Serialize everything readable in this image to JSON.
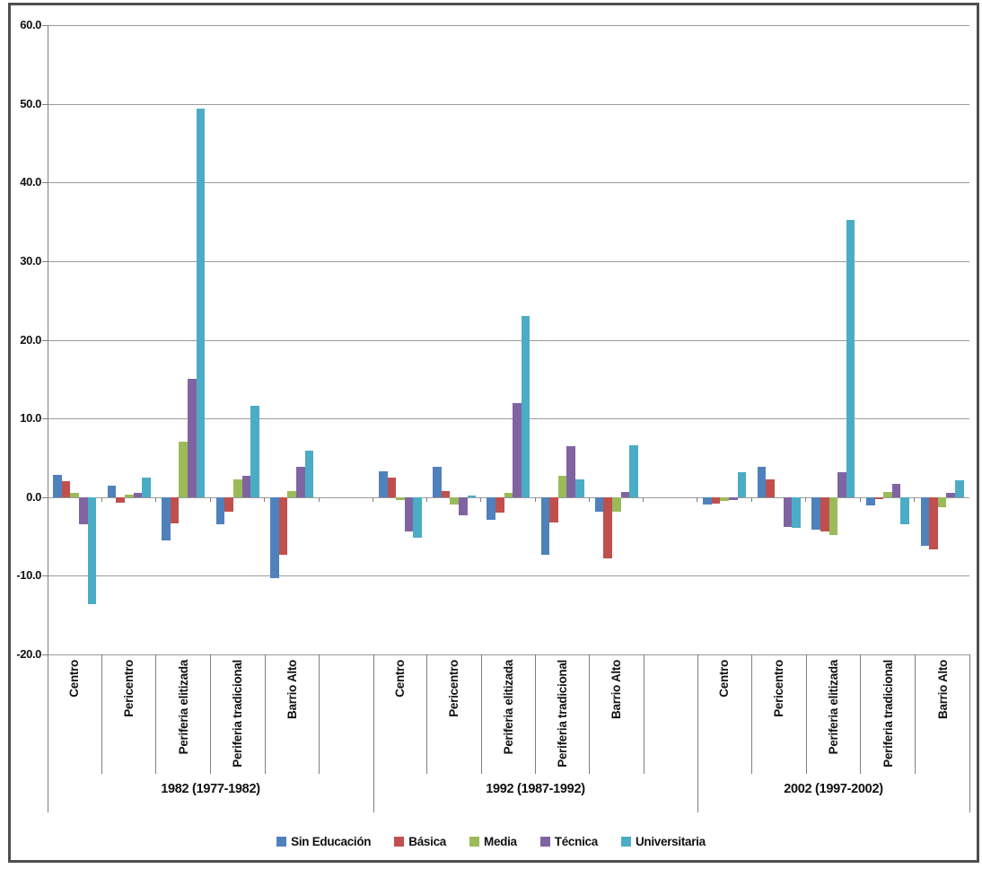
{
  "chart_data": {
    "type": "bar",
    "title": "",
    "xlabel": "",
    "ylabel": "",
    "grid": true,
    "legend_position": "bottom",
    "y_axis": {
      "min": -20.0,
      "max": 60.0,
      "step": 10.0,
      "tick_labels": [
        "60.0",
        "50.0",
        "40.0",
        "30.0",
        "20.0",
        "10.0",
        "0.0",
        "-10.0",
        "-20.0"
      ]
    },
    "series": [
      {
        "name": "Sin Educación",
        "color": "#4F81BD"
      },
      {
        "name": "Básica",
        "color": "#C0504D"
      },
      {
        "name": "Media",
        "color": "#9BBB59"
      },
      {
        "name": "Técnica",
        "color": "#8064A2"
      },
      {
        "name": "Universitaria",
        "color": "#4BACC6"
      }
    ],
    "periods": [
      {
        "label": "1982 (1977-1982)",
        "trailing_spacer": true,
        "groups": [
          {
            "category": "Centro",
            "values": [
              2.8,
              2.0,
              0.5,
              -3.5,
              -13.6
            ]
          },
          {
            "category": "Pericentro",
            "values": [
              1.5,
              -0.7,
              0.3,
              0.5,
              2.5
            ]
          },
          {
            "category": "Periferia elitizada",
            "values": [
              -5.5,
              -3.3,
              7.1,
              15.0,
              49.4
            ]
          },
          {
            "category": "Periferia tradicional",
            "values": [
              -3.4,
              -1.9,
              2.2,
              2.7,
              11.6
            ]
          },
          {
            "category": "Barrio Alto",
            "values": [
              -10.3,
              -7.3,
              0.8,
              3.9,
              5.9
            ]
          }
        ]
      },
      {
        "label": "1992 (1987-1992)",
        "trailing_spacer": true,
        "groups": [
          {
            "category": "Centro",
            "values": [
              3.3,
              2.5,
              -0.4,
              -4.4,
              -5.2
            ]
          },
          {
            "category": "Pericentro",
            "values": [
              3.9,
              0.8,
              -0.9,
              -2.3,
              0.2
            ]
          },
          {
            "category": "Periferia elitizada",
            "values": [
              -2.9,
              -2.0,
              0.5,
              11.9,
              23.0
            ]
          },
          {
            "category": "Periferia tradicional",
            "values": [
              -7.3,
              -3.2,
              2.7,
              6.5,
              2.3
            ]
          },
          {
            "category": "Barrio Alto",
            "values": [
              -1.9,
              -7.8,
              -1.8,
              0.7,
              6.6
            ]
          }
        ]
      },
      {
        "label": "2002 (1997-2002)",
        "trailing_spacer": false,
        "groups": [
          {
            "category": "Centro",
            "values": [
              -0.9,
              -0.8,
              -0.5,
              -0.4,
              3.2
            ]
          },
          {
            "category": "Pericentro",
            "values": [
              3.9,
              2.3,
              0.0,
              -3.8,
              -3.9
            ]
          },
          {
            "category": "Periferia elitizada",
            "values": [
              -4.1,
              -4.4,
              -4.8,
              3.2,
              35.2
            ]
          },
          {
            "category": "Periferia tradicional",
            "values": [
              -1.1,
              -0.3,
              0.6,
              1.7,
              -3.5
            ]
          },
          {
            "category": "Barrio Alto",
            "values": [
              -6.2,
              -6.7,
              -1.3,
              0.5,
              2.1
            ]
          }
        ]
      }
    ]
  }
}
